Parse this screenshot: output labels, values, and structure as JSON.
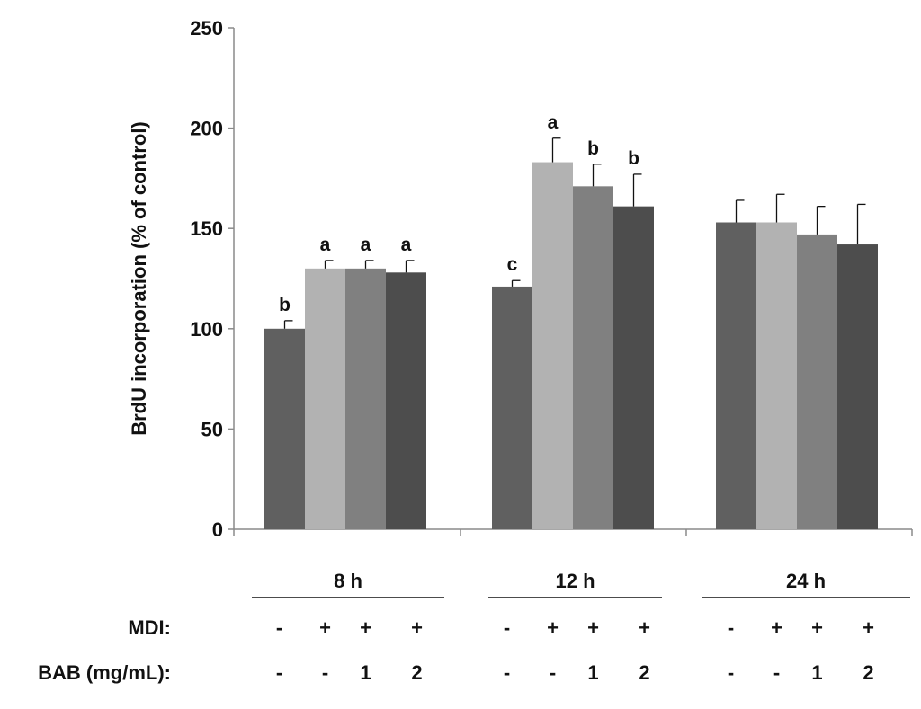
{
  "chart_data": {
    "type": "bar",
    "title": "",
    "xlabel": "",
    "ylabel": "BrdU incorporation (% of control)",
    "ylim": [
      0,
      250
    ],
    "yticks": [
      0,
      50,
      100,
      150,
      200,
      250
    ],
    "grid": false,
    "groups": [
      {
        "label": "8 h",
        "bars": [
          {
            "value": 100,
            "error": 4,
            "sig": "b",
            "color": "#606060"
          },
          {
            "value": 130,
            "error": 4,
            "sig": "a",
            "color": "#b2b2b2"
          },
          {
            "value": 130,
            "error": 4,
            "sig": "a",
            "color": "#808080"
          },
          {
            "value": 128,
            "error": 6,
            "sig": "a",
            "color": "#4d4d4d"
          }
        ]
      },
      {
        "label": "12 h",
        "bars": [
          {
            "value": 121,
            "error": 3,
            "sig": "c",
            "color": "#606060"
          },
          {
            "value": 183,
            "error": 12,
            "sig": "a",
            "color": "#b2b2b2"
          },
          {
            "value": 171,
            "error": 11,
            "sig": "b",
            "color": "#808080"
          },
          {
            "value": 161,
            "error": 16,
            "sig": "b",
            "color": "#4d4d4d"
          }
        ]
      },
      {
        "label": "24 h",
        "bars": [
          {
            "value": 153,
            "error": 11,
            "sig": "",
            "color": "#606060"
          },
          {
            "value": 153,
            "error": 14,
            "sig": "",
            "color": "#b2b2b2"
          },
          {
            "value": 147,
            "error": 14,
            "sig": "",
            "color": "#808080"
          },
          {
            "value": 142,
            "error": 20,
            "sig": "",
            "color": "#4d4d4d"
          }
        ]
      }
    ],
    "conditions": [
      {
        "label": "MDI:",
        "values": [
          "-",
          "+",
          "+",
          "+",
          "-",
          "+",
          "+",
          "+",
          "-",
          "+",
          "+",
          "+"
        ]
      },
      {
        "label": "BAB (mg/mL):",
        "values": [
          "-",
          "-",
          "1",
          "2",
          "-",
          "-",
          "1",
          "2",
          "-",
          "-",
          "1",
          "2"
        ]
      }
    ]
  }
}
